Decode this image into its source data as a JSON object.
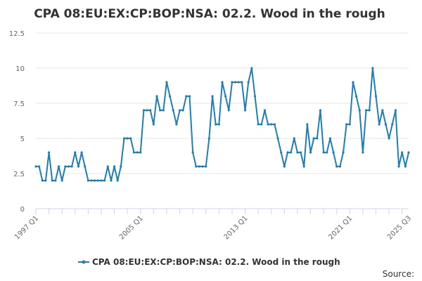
{
  "chart_data": {
    "type": "line",
    "title": "CPA 08:EU:EX:CP:BOP:NSA: 02.2. Wood in the rough",
    "source_label": "Source:",
    "series": [
      {
        "name": "CPA 08:EU:EX:CP:BOP:NSA: 02.2. Wood in the rough",
        "color": "#1f7fb4",
        "start_quarter": "1997 Q1",
        "values": [
          3,
          3,
          2,
          2,
          4,
          2,
          2,
          3,
          2,
          3,
          3,
          3,
          4,
          3,
          4,
          3,
          2,
          2,
          2,
          2,
          2,
          2,
          3,
          2,
          3,
          2,
          3,
          5,
          5,
          5,
          4,
          4,
          4,
          7,
          7,
          7,
          6,
          8,
          7,
          7,
          9,
          8,
          7,
          6,
          7,
          7,
          8,
          8,
          4,
          3,
          3,
          3,
          3,
          5,
          8,
          6,
          6,
          9,
          8,
          7,
          9,
          9,
          9,
          9,
          7,
          9,
          10,
          8,
          6,
          6,
          7,
          6,
          6,
          6,
          5,
          4,
          3,
          4,
          4,
          5,
          4,
          4,
          3,
          6,
          4,
          5,
          5,
          7,
          4,
          4,
          5,
          4,
          3,
          3,
          4,
          6,
          6,
          9,
          8,
          7,
          4,
          7,
          7,
          10,
          8,
          6,
          7,
          6,
          5,
          6,
          7,
          3,
          4,
          3,
          4
        ]
      }
    ],
    "x_ticks": [
      "1997 Q1",
      "2005 Q1",
      "2013 Q1",
      "2021 Q1",
      "2025 Q3"
    ],
    "y_ticks": [
      "0",
      "2.5",
      "5",
      "7.5",
      "10",
      "12.5"
    ],
    "ylim": [
      0,
      12.5
    ],
    "grid": true,
    "legend_position": "bottom"
  }
}
